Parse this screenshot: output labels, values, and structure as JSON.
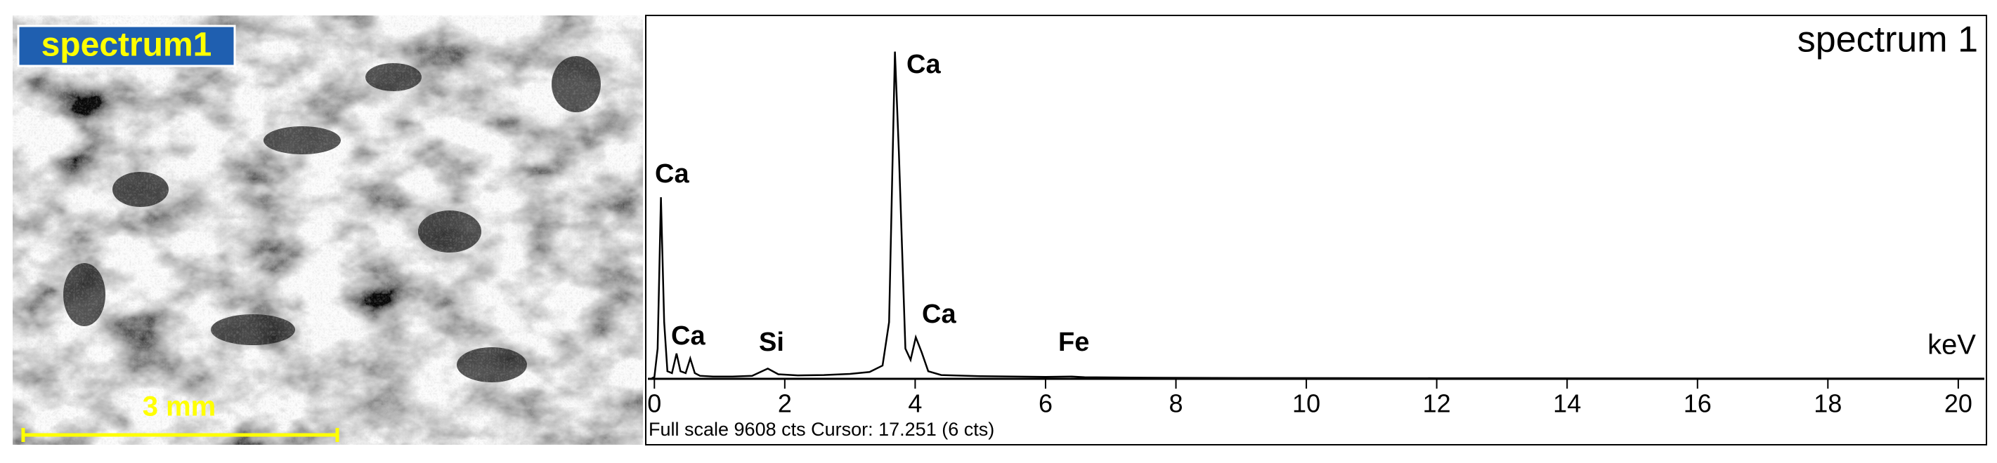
{
  "image_panel": {
    "label": "spectrum1",
    "scale_bar": "3 mm"
  },
  "chart_data": {
    "type": "line",
    "title": "spectrum 1",
    "x_label": "keV",
    "footer": "Full scale 9608 cts Cursor: 17.251 (6 cts)",
    "annotations": [
      "Ca",
      "Ca",
      "Ca",
      "Si",
      "Ca",
      "Fe"
    ],
    "x": [
      -0.05,
      0,
      0.05,
      0.1,
      0.15,
      0.2,
      0.27,
      0.34,
      0.4,
      0.48,
      0.55,
      0.62,
      0.7,
      0.9,
      1.2,
      1.5,
      1.74,
      1.9,
      2.2,
      2.6,
      3.0,
      3.3,
      3.5,
      3.6,
      3.69,
      3.75,
      3.85,
      3.93,
      4.01,
      4.1,
      4.2,
      4.4,
      5.0,
      6.0,
      6.4,
      6.6,
      7.5,
      9,
      12,
      16,
      20.4
    ],
    "values": [
      0,
      50,
      800,
      4800,
      1500,
      200,
      150,
      670,
      200,
      150,
      540,
      150,
      80,
      60,
      60,
      80,
      270,
      120,
      90,
      100,
      130,
      180,
      350,
      1500,
      8650,
      6000,
      800,
      500,
      1100,
      700,
      200,
      100,
      70,
      50,
      60,
      40,
      30,
      20,
      15,
      10,
      8
    ],
    "color": "#000000",
    "xlim": [
      -0.1,
      20.4
    ],
    "xticks": [
      0,
      2,
      4,
      6,
      8,
      10,
      12,
      14,
      16,
      18,
      20
    ],
    "ylim": [
      0,
      9608
    ]
  }
}
